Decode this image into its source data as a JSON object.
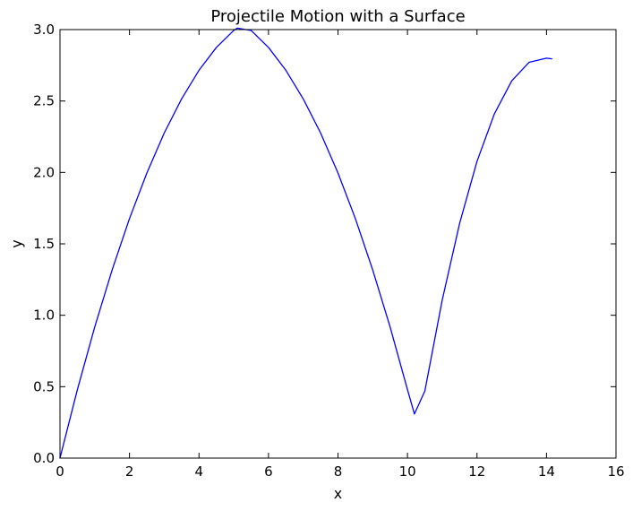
{
  "chart_data": {
    "type": "line",
    "title": "Projectile Motion with a Surface",
    "xlabel": "x",
    "ylabel": "y",
    "xlim": [
      0,
      16
    ],
    "ylim": [
      0,
      3.0
    ],
    "xticks": [
      0,
      2,
      4,
      6,
      8,
      10,
      12,
      14,
      16
    ],
    "xtick_labels": [
      "0",
      "2",
      "4",
      "6",
      "8",
      "10",
      "12",
      "14",
      "16"
    ],
    "yticks": [
      0,
      0.5,
      1.0,
      1.5,
      2.0,
      2.5,
      3.0
    ],
    "ytick_labels": [
      "0.0",
      "0.5",
      "1.0",
      "1.5",
      "2.0",
      "2.5",
      "3.0"
    ],
    "grid": false,
    "series": [
      {
        "color": "#0000ff",
        "x": [
          0,
          0.5,
          1.0,
          1.5,
          2.0,
          2.5,
          3.0,
          3.5,
          4.0,
          4.5,
          5.0,
          5.1,
          5.5,
          6.0,
          6.5,
          7.0,
          7.5,
          8.0,
          8.5,
          9.0,
          9.5,
          10.0,
          10.2,
          10.5,
          11.0,
          11.5,
          12.0,
          12.5,
          13.0,
          13.5,
          14.0,
          14.15
        ],
        "y": [
          0,
          0.479,
          0.918,
          1.317,
          1.677,
          1.996,
          2.276,
          2.515,
          2.715,
          2.875,
          2.994,
          3.01,
          2.994,
          2.875,
          2.715,
          2.515,
          2.276,
          1.996,
          1.677,
          1.317,
          0.918,
          0.479,
          0.309,
          0.47,
          1.107,
          1.643,
          2.077,
          2.41,
          2.641,
          2.771,
          2.8,
          2.795
        ]
      }
    ]
  }
}
